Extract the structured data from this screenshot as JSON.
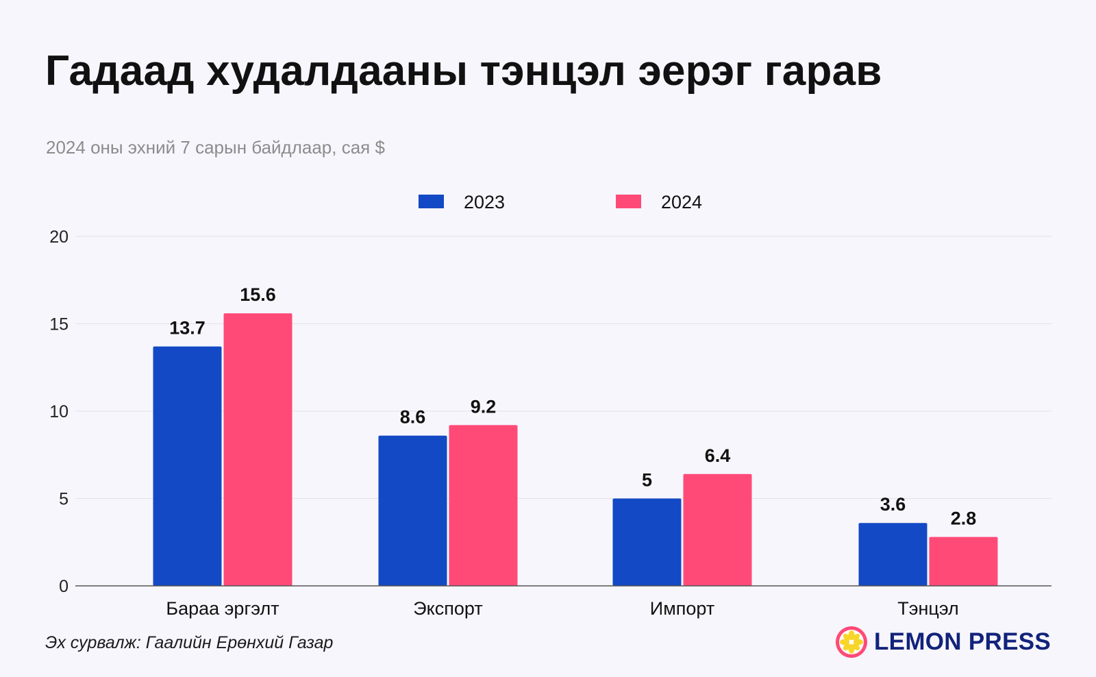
{
  "title": "Гадаад худалдааны тэнцэл эерэг гарав",
  "subtitle": "2024 оны эхний 7 сарын байдлаар, сая $",
  "source": "Эх сурвалж: Гаалийн Ерөнхий Газар",
  "logo": {
    "text": "LEMON PRESS",
    "icon": "lemon-icon",
    "color": "#12237a",
    "accent": "#ff4a78"
  },
  "chart_data": {
    "type": "bar",
    "categories": [
      "Бараа эргэлт",
      "Экспорт",
      "Импорт",
      "Тэнцэл"
    ],
    "series": [
      {
        "name": "2023",
        "color": "#1349c4",
        "values": [
          13.7,
          8.6,
          5,
          3.6
        ]
      },
      {
        "name": "2024",
        "color": "#ff4a78",
        "values": [
          15.6,
          9.2,
          6.4,
          2.8
        ]
      }
    ],
    "ylim": [
      0,
      20
    ],
    "yticks": [
      0,
      5,
      10,
      15,
      20
    ],
    "grid": true,
    "legend_position": "top-center",
    "xlabel": "",
    "ylabel": ""
  }
}
